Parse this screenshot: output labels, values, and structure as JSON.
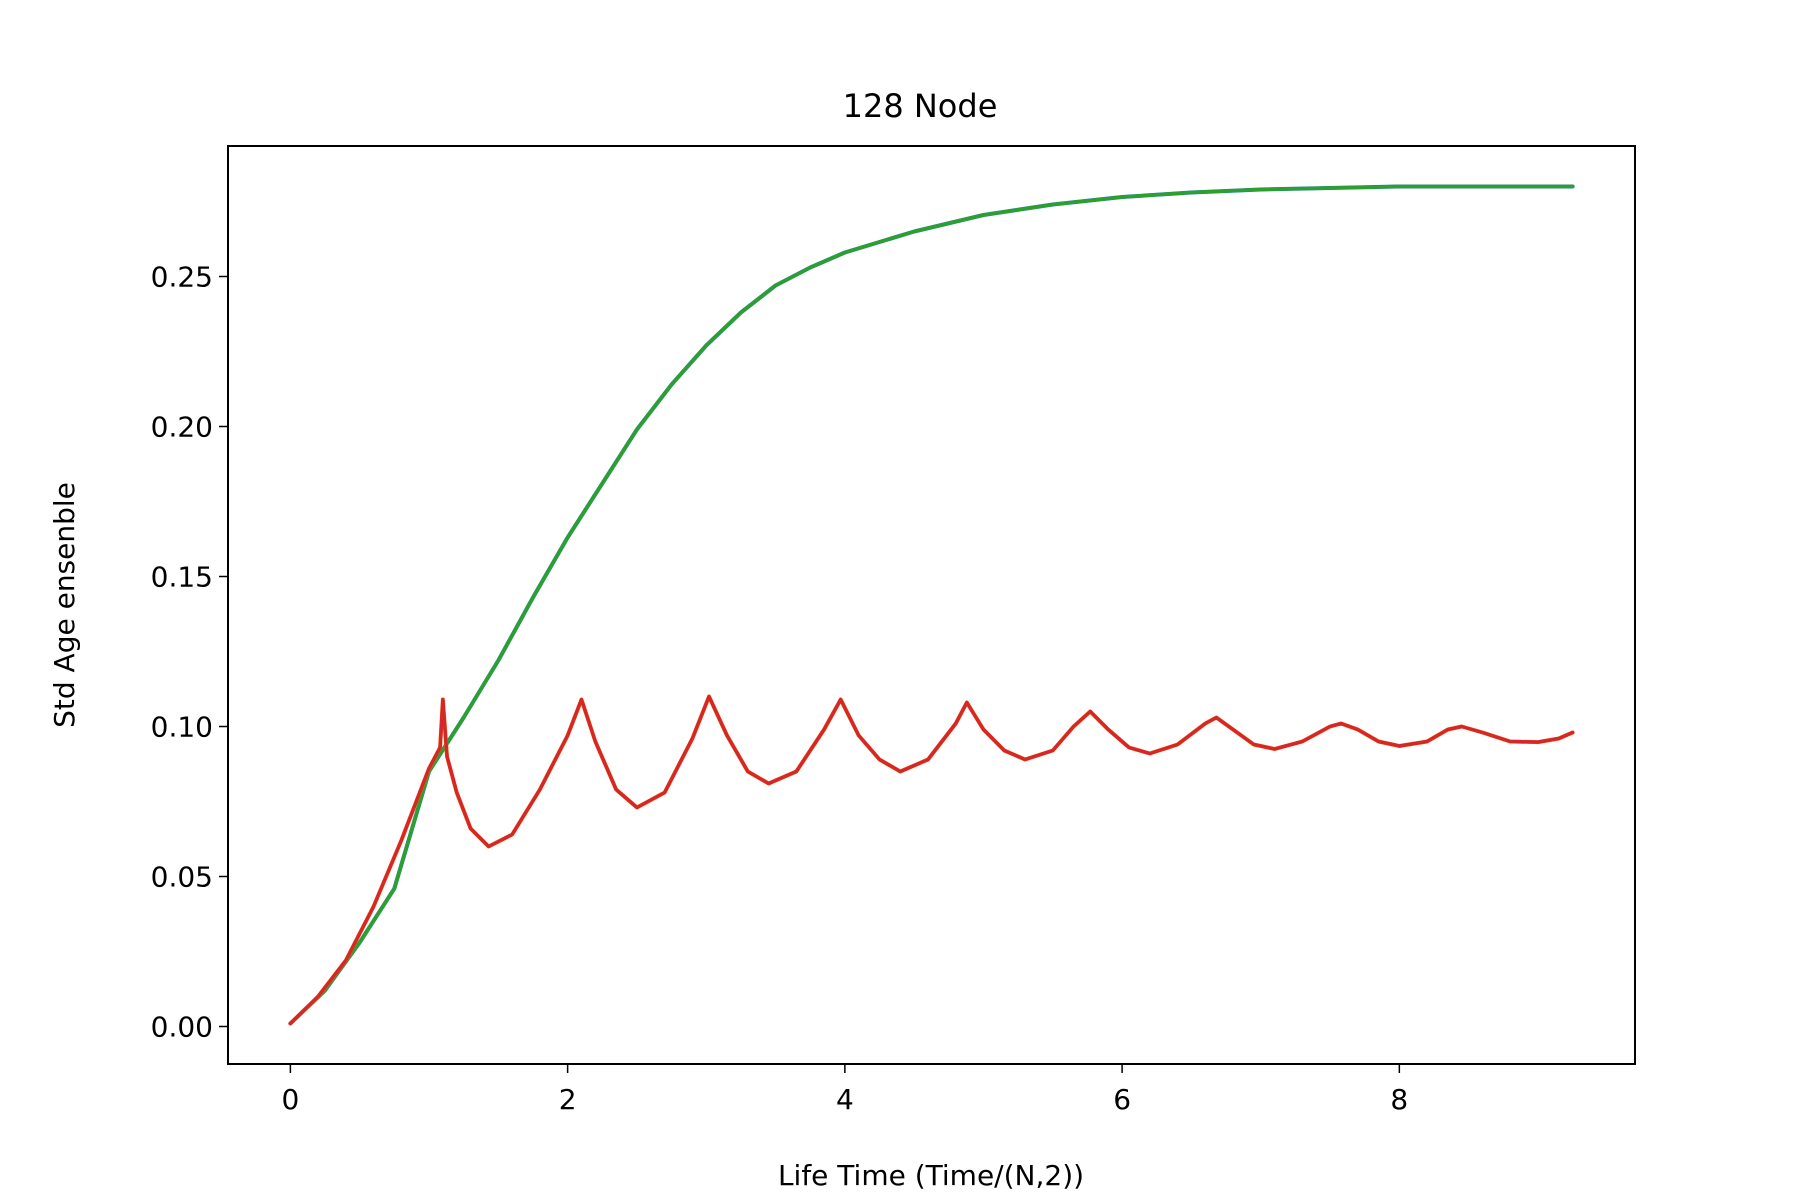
{
  "chart_data": {
    "type": "line",
    "title": "128 Node",
    "xlabel": "Life Time (Time/(N,2))",
    "ylabel": "Std Age ensenble",
    "xlim": [
      -0.45,
      9.7
    ],
    "ylim": [
      -0.0125,
      0.2935
    ],
    "xticks": [
      0,
      2,
      4,
      6,
      8
    ],
    "xtick_labels": [
      "0",
      "2",
      "4",
      "6",
      "8"
    ],
    "yticks": [
      0.0,
      0.05,
      0.1,
      0.15,
      0.2,
      0.25
    ],
    "ytick_labels": [
      "0.00",
      "0.05",
      "0.10",
      "0.15",
      "0.20",
      "0.25"
    ],
    "grid": false,
    "legend": "none",
    "series": [
      {
        "color": "#1f77b4",
        "style": "solid",
        "points": [
          [
            0,
            0.001
          ],
          [
            0.25,
            0.012
          ],
          [
            0.5,
            0.028
          ],
          [
            0.75,
            0.046
          ],
          [
            1.0,
            0.085
          ],
          [
            1.25,
            0.103
          ],
          [
            1.5,
            0.122
          ],
          [
            1.75,
            0.143
          ],
          [
            2.0,
            0.163
          ],
          [
            2.25,
            0.181
          ],
          [
            2.5,
            0.199
          ],
          [
            2.75,
            0.214
          ],
          [
            3.0,
            0.227
          ],
          [
            3.25,
            0.238
          ],
          [
            3.5,
            0.247
          ],
          [
            3.75,
            0.253
          ],
          [
            4.0,
            0.258
          ],
          [
            4.5,
            0.265
          ],
          [
            5.0,
            0.2705
          ],
          [
            5.5,
            0.274
          ],
          [
            6.0,
            0.2765
          ],
          [
            6.5,
            0.278
          ],
          [
            7.0,
            0.279
          ],
          [
            7.5,
            0.2795
          ],
          [
            8.0,
            0.28
          ],
          [
            8.5,
            0.28
          ],
          [
            9.0,
            0.28
          ],
          [
            9.25,
            0.28
          ]
        ]
      },
      {
        "color": "#2ca02c",
        "style": "solid",
        "points": [
          [
            0,
            0.001
          ],
          [
            0.25,
            0.012
          ],
          [
            0.5,
            0.028
          ],
          [
            0.75,
            0.046
          ],
          [
            1.0,
            0.085
          ],
          [
            1.25,
            0.103
          ],
          [
            1.5,
            0.122
          ],
          [
            1.75,
            0.143
          ],
          [
            2.0,
            0.163
          ],
          [
            2.25,
            0.181
          ],
          [
            2.5,
            0.199
          ],
          [
            2.75,
            0.214
          ],
          [
            3.0,
            0.227
          ],
          [
            3.25,
            0.238
          ],
          [
            3.5,
            0.247
          ],
          [
            3.75,
            0.253
          ],
          [
            4.0,
            0.258
          ],
          [
            4.5,
            0.265
          ],
          [
            5.0,
            0.2705
          ],
          [
            5.5,
            0.274
          ],
          [
            6.0,
            0.2765
          ],
          [
            6.5,
            0.278
          ],
          [
            7.0,
            0.279
          ],
          [
            7.5,
            0.2795
          ],
          [
            8.0,
            0.28
          ],
          [
            8.5,
            0.28
          ],
          [
            9.0,
            0.28
          ],
          [
            9.25,
            0.28
          ]
        ]
      },
      {
        "color": "#ff7f0e",
        "style": "solid",
        "points": [
          [
            0,
            0.001
          ],
          [
            0.2,
            0.01
          ],
          [
            0.4,
            0.022
          ],
          [
            0.6,
            0.04
          ],
          [
            0.8,
            0.062
          ],
          [
            1.0,
            0.086
          ],
          [
            1.08,
            0.093
          ],
          [
            1.1,
            0.109
          ],
          [
            1.13,
            0.09
          ],
          [
            1.2,
            0.078
          ],
          [
            1.3,
            0.066
          ],
          [
            1.43,
            0.06
          ],
          [
            1.6,
            0.064
          ],
          [
            1.8,
            0.079
          ],
          [
            2.0,
            0.097
          ],
          [
            2.1,
            0.109
          ],
          [
            2.2,
            0.095
          ],
          [
            2.35,
            0.079
          ],
          [
            2.5,
            0.073
          ],
          [
            2.7,
            0.078
          ],
          [
            2.9,
            0.096
          ],
          [
            3.02,
            0.11
          ],
          [
            3.15,
            0.097
          ],
          [
            3.3,
            0.085
          ],
          [
            3.45,
            0.081
          ],
          [
            3.65,
            0.085
          ],
          [
            3.85,
            0.099
          ],
          [
            3.97,
            0.109
          ],
          [
            4.1,
            0.097
          ],
          [
            4.25,
            0.089
          ],
          [
            4.4,
            0.085
          ],
          [
            4.6,
            0.089
          ],
          [
            4.8,
            0.101
          ],
          [
            4.88,
            0.108
          ],
          [
            5.0,
            0.099
          ],
          [
            5.15,
            0.092
          ],
          [
            5.3,
            0.089
          ],
          [
            5.5,
            0.092
          ],
          [
            5.65,
            0.1
          ],
          [
            5.77,
            0.105
          ],
          [
            5.9,
            0.099
          ],
          [
            6.05,
            0.093
          ],
          [
            6.2,
            0.091
          ],
          [
            6.4,
            0.094
          ],
          [
            6.6,
            0.101
          ],
          [
            6.68,
            0.103
          ],
          [
            6.8,
            0.099
          ],
          [
            6.95,
            0.094
          ],
          [
            7.1,
            0.0925
          ],
          [
            7.3,
            0.095
          ],
          [
            7.5,
            0.1
          ],
          [
            7.58,
            0.101
          ],
          [
            7.7,
            0.099
          ],
          [
            7.85,
            0.095
          ],
          [
            8.0,
            0.0935
          ],
          [
            8.2,
            0.095
          ],
          [
            8.35,
            0.099
          ],
          [
            8.45,
            0.1
          ],
          [
            8.6,
            0.098
          ],
          [
            8.8,
            0.095
          ],
          [
            9.0,
            0.0948
          ],
          [
            9.15,
            0.096
          ],
          [
            9.25,
            0.098
          ]
        ]
      },
      {
        "color": "#d62728",
        "style": "solid",
        "points": [
          [
            0,
            0.001
          ],
          [
            0.2,
            0.01
          ],
          [
            0.4,
            0.022
          ],
          [
            0.6,
            0.04
          ],
          [
            0.8,
            0.062
          ],
          [
            1.0,
            0.086
          ],
          [
            1.08,
            0.093
          ],
          [
            1.1,
            0.109
          ],
          [
            1.13,
            0.09
          ],
          [
            1.2,
            0.078
          ],
          [
            1.3,
            0.066
          ],
          [
            1.43,
            0.06
          ],
          [
            1.6,
            0.064
          ],
          [
            1.8,
            0.079
          ],
          [
            2.0,
            0.097
          ],
          [
            2.1,
            0.109
          ],
          [
            2.2,
            0.095
          ],
          [
            2.35,
            0.079
          ],
          [
            2.5,
            0.073
          ],
          [
            2.7,
            0.078
          ],
          [
            2.9,
            0.096
          ],
          [
            3.02,
            0.11
          ],
          [
            3.15,
            0.097
          ],
          [
            3.3,
            0.085
          ],
          [
            3.45,
            0.081
          ],
          [
            3.65,
            0.085
          ],
          [
            3.85,
            0.099
          ],
          [
            3.97,
            0.109
          ],
          [
            4.1,
            0.097
          ],
          [
            4.25,
            0.089
          ],
          [
            4.4,
            0.085
          ],
          [
            4.6,
            0.089
          ],
          [
            4.8,
            0.101
          ],
          [
            4.88,
            0.108
          ],
          [
            5.0,
            0.099
          ],
          [
            5.15,
            0.092
          ],
          [
            5.3,
            0.089
          ],
          [
            5.5,
            0.092
          ],
          [
            5.65,
            0.1
          ],
          [
            5.77,
            0.105
          ],
          [
            5.9,
            0.099
          ],
          [
            6.05,
            0.093
          ],
          [
            6.2,
            0.091
          ],
          [
            6.4,
            0.094
          ],
          [
            6.6,
            0.101
          ],
          [
            6.68,
            0.103
          ],
          [
            6.8,
            0.099
          ],
          [
            6.95,
            0.094
          ],
          [
            7.1,
            0.0925
          ],
          [
            7.3,
            0.095
          ],
          [
            7.5,
            0.1
          ],
          [
            7.58,
            0.101
          ],
          [
            7.7,
            0.099
          ],
          [
            7.85,
            0.095
          ],
          [
            8.0,
            0.0935
          ],
          [
            8.2,
            0.095
          ],
          [
            8.35,
            0.099
          ],
          [
            8.45,
            0.1
          ],
          [
            8.6,
            0.098
          ],
          [
            8.8,
            0.095
          ],
          [
            9.0,
            0.0948
          ],
          [
            9.15,
            0.096
          ],
          [
            9.25,
            0.098
          ]
        ]
      }
    ]
  }
}
